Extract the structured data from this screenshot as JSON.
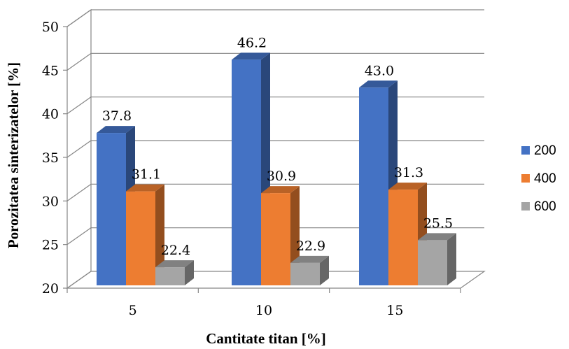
{
  "chart_data": {
    "type": "bar",
    "title": "",
    "xlabel": "Cantitate titan [%]",
    "ylabel": "Porozitatea sinterizatelor [%]",
    "categories": [
      "5",
      "10",
      "15"
    ],
    "ylim": [
      20,
      50
    ],
    "yticks": [
      20,
      25,
      30,
      35,
      40,
      45,
      50
    ],
    "grid": true,
    "legend_position": "right",
    "series": [
      {
        "name": "200",
        "values": [
          37.8,
          46.2,
          43.0
        ],
        "labels": [
          "37.8",
          "46.2",
          "43.0"
        ],
        "color": "#4472C4"
      },
      {
        "name": "400",
        "values": [
          31.1,
          30.9,
          31.3
        ],
        "labels": [
          "31.1",
          "30.9",
          "31.3"
        ],
        "color": "#ED7D31"
      },
      {
        "name": "600",
        "values": [
          22.4,
          22.9,
          25.5
        ],
        "labels": [
          "22.4",
          "22.9",
          "25.5"
        ],
        "color": "#A5A5A5"
      }
    ]
  }
}
